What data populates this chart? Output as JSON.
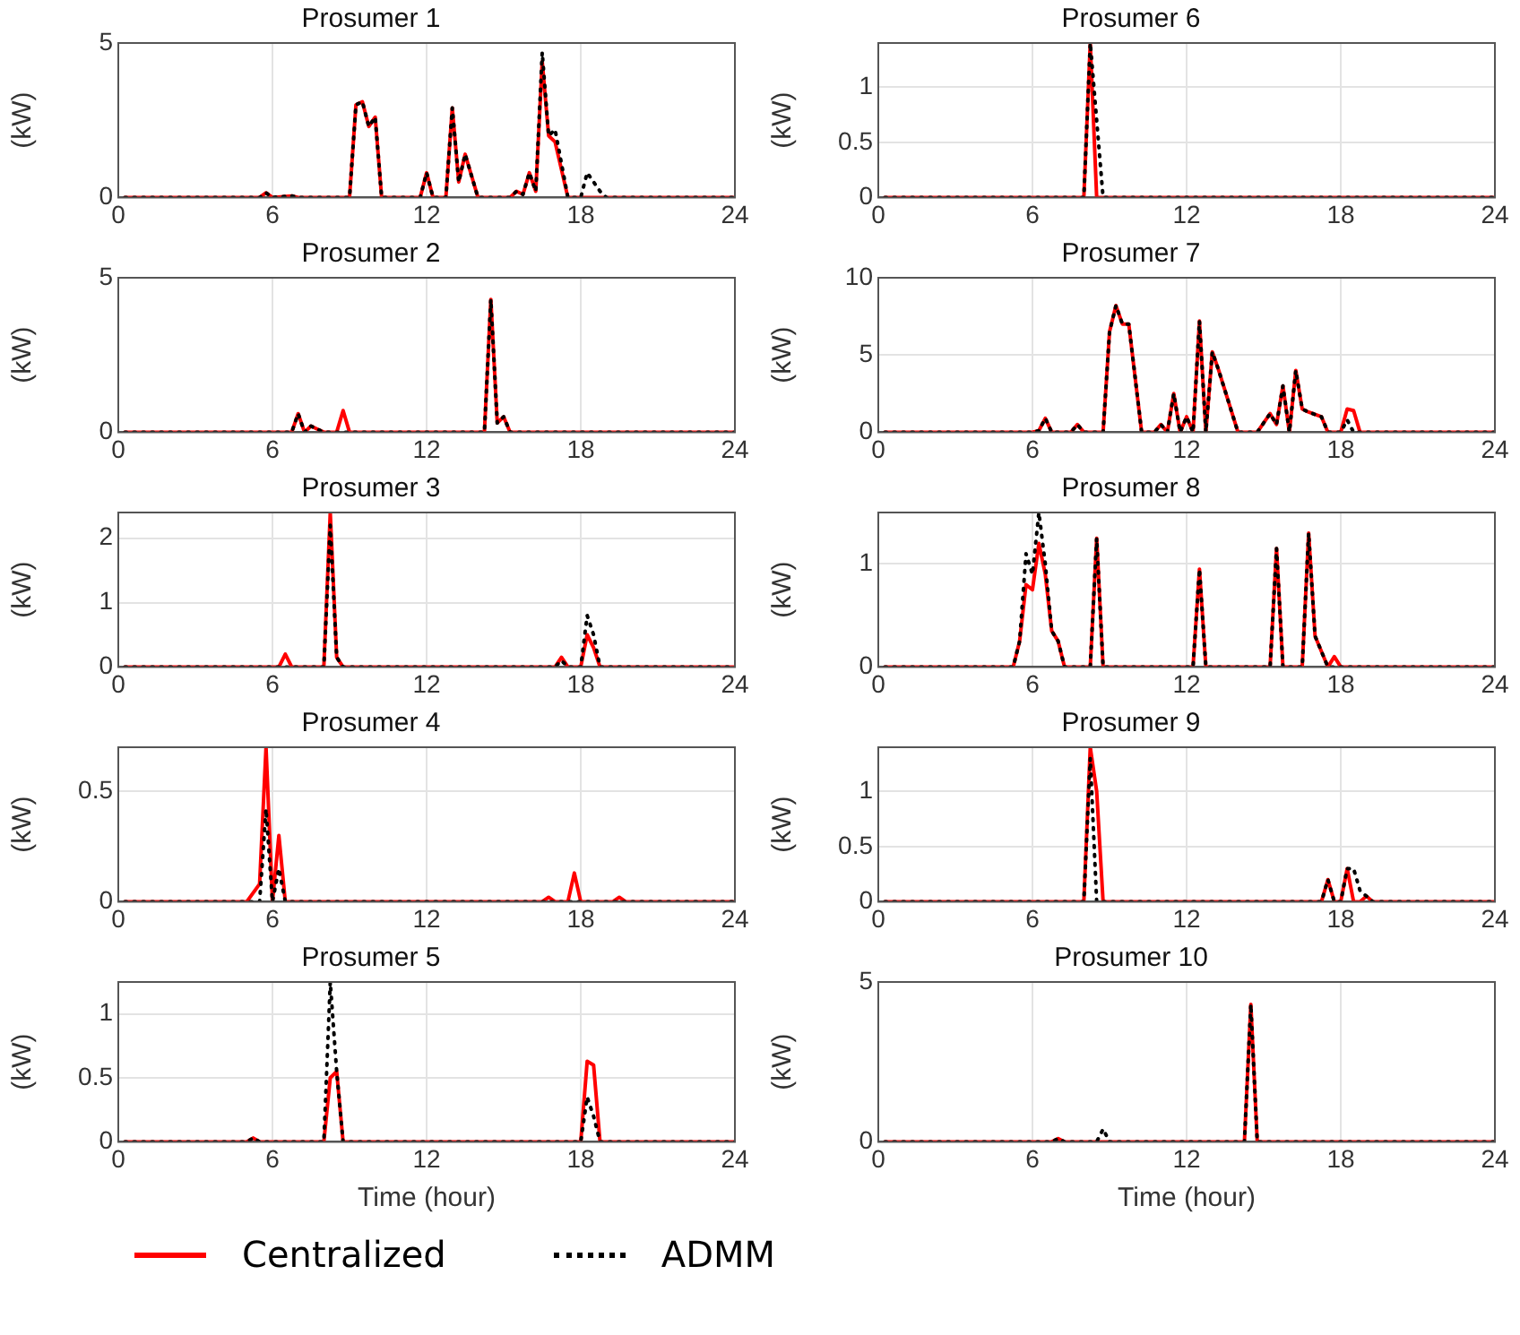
{
  "chart_data": [
    {
      "type": "line",
      "title": "Prosumer 1",
      "ylabel": "(kW)",
      "xlim": [
        0,
        24
      ],
      "xticks": [
        0,
        6,
        12,
        18,
        24
      ],
      "ylim": [
        0,
        5
      ],
      "yticks": [
        0,
        5
      ],
      "grid": true,
      "series": [
        {
          "color": "#ff0000",
          "line_style": "solid",
          "x": [
            0.25,
            5.5,
            5.75,
            6,
            6.75,
            7,
            7.25,
            9,
            9.25,
            9.5,
            9.75,
            10,
            10.25,
            11.75,
            12,
            12.25,
            12.75,
            13,
            13.25,
            13.5,
            13.75,
            14,
            15.25,
            15.5,
            15.75,
            16,
            16.25,
            16.5,
            16.75,
            17,
            17.5,
            24
          ],
          "values": [
            0,
            0,
            0.15,
            0,
            0.05,
            0,
            0,
            0,
            3,
            3.1,
            2.3,
            2.6,
            0,
            0,
            0.8,
            0,
            0,
            2.9,
            0.5,
            1.4,
            0.7,
            0,
            0,
            0.2,
            0.1,
            0.8,
            0.2,
            4.4,
            2,
            1.8,
            0,
            0
          ]
        },
        {
          "color": "#000000",
          "line_style": "dotted",
          "x": [
            0.25,
            5.5,
            5.75,
            6,
            6.75,
            7,
            7.25,
            9,
            9.25,
            9.5,
            9.75,
            10,
            10.25,
            11.75,
            12,
            12.25,
            12.75,
            13,
            13.25,
            13.5,
            13.75,
            14,
            15.25,
            15.5,
            15.75,
            16,
            16.25,
            16.5,
            16.75,
            17,
            17.5,
            18,
            18.25,
            18.5,
            18.75,
            19,
            24
          ],
          "values": [
            0,
            0,
            0.15,
            0,
            0.05,
            0,
            0,
            0,
            3,
            3.1,
            2.3,
            2.6,
            0,
            0,
            0.8,
            0,
            0,
            2.9,
            0.5,
            1.4,
            0.7,
            0,
            0,
            0.2,
            0.1,
            0.8,
            0.2,
            4.7,
            2,
            2.2,
            0,
            0,
            0.8,
            0.5,
            0.2,
            0,
            0
          ]
        }
      ]
    },
    {
      "type": "line",
      "title": "Prosumer 6",
      "ylabel": "(kW)",
      "xlim": [
        0,
        24
      ],
      "xticks": [
        0,
        6,
        12,
        18,
        24
      ],
      "ylim": [
        0,
        1.4
      ],
      "yticks": [
        0,
        0.5,
        1
      ],
      "grid": true,
      "series": [
        {
          "color": "#ff0000",
          "line_style": "solid",
          "x": [
            0.25,
            8,
            8.25,
            8.5,
            24
          ],
          "values": [
            0,
            0,
            1.4,
            0,
            0
          ]
        },
        {
          "color": "#000000",
          "line_style": "dotted",
          "x": [
            0.25,
            8,
            8.25,
            8.5,
            8.75,
            24
          ],
          "values": [
            0,
            0,
            1.4,
            0.7,
            0,
            0
          ]
        }
      ]
    },
    {
      "type": "line",
      "title": "Prosumer 2",
      "ylabel": "(kW)",
      "xlim": [
        0,
        24
      ],
      "xticks": [
        0,
        6,
        12,
        18,
        24
      ],
      "ylim": [
        0,
        5
      ],
      "yticks": [
        0,
        5
      ],
      "grid": true,
      "series": [
        {
          "color": "#ff0000",
          "line_style": "solid",
          "x": [
            0.25,
            6.75,
            7,
            7.25,
            7.5,
            7.75,
            8,
            8.5,
            8.75,
            9,
            14.25,
            14.5,
            14.75,
            15,
            15.25,
            24
          ],
          "values": [
            0,
            0,
            0.6,
            0,
            0.2,
            0.1,
            0,
            0,
            0.7,
            0,
            0,
            4.3,
            0.3,
            0.5,
            0,
            0
          ]
        },
        {
          "color": "#000000",
          "line_style": "dotted",
          "x": [
            0.25,
            6.75,
            7,
            7.25,
            7.5,
            7.75,
            8,
            14.25,
            14.5,
            14.75,
            15,
            15.25,
            24
          ],
          "values": [
            0,
            0,
            0.6,
            0,
            0.2,
            0.1,
            0,
            0,
            4.3,
            0.3,
            0.5,
            0,
            0
          ]
        }
      ]
    },
    {
      "type": "line",
      "title": "Prosumer 7",
      "ylabel": "(kW)",
      "xlim": [
        0,
        24
      ],
      "xticks": [
        0,
        6,
        12,
        18,
        24
      ],
      "ylim": [
        0,
        10
      ],
      "yticks": [
        0,
        5,
        10
      ],
      "grid": true,
      "series": [
        {
          "color": "#ff0000",
          "line_style": "solid",
          "x": [
            0.25,
            6,
            6.25,
            6.5,
            6.75,
            7.5,
            7.75,
            8,
            8.75,
            9,
            9.25,
            9.5,
            9.75,
            10.25,
            10.75,
            11,
            11.25,
            11.5,
            11.75,
            12,
            12.25,
            12.5,
            12.75,
            13,
            13.25,
            14,
            14.75,
            15.25,
            15.5,
            15.75,
            16,
            16.25,
            16.5,
            16.75,
            17.25,
            17.5,
            18,
            18.25,
            18.5,
            18.75,
            24
          ],
          "values": [
            0,
            0,
            0.1,
            0.9,
            0,
            0,
            0.5,
            0,
            0,
            6.5,
            8.2,
            7,
            7,
            0,
            0,
            0.5,
            0,
            2.5,
            0,
            1,
            0,
            7.2,
            0,
            5.2,
            4,
            0,
            0,
            1.2,
            0.5,
            3,
            0,
            4,
            1.5,
            1.3,
            1,
            0,
            0,
            1.5,
            1.4,
            0,
            0
          ]
        },
        {
          "color": "#000000",
          "line_style": "dotted",
          "x": [
            0.25,
            6,
            6.25,
            6.5,
            6.75,
            7.5,
            7.75,
            8,
            8.75,
            9,
            9.25,
            9.5,
            9.75,
            10.25,
            10.75,
            11,
            11.25,
            11.5,
            11.75,
            12,
            12.25,
            12.5,
            12.75,
            13,
            13.25,
            14,
            14.75,
            15.25,
            15.5,
            15.75,
            16,
            16.25,
            16.5,
            16.75,
            17.25,
            17.5,
            18,
            18.25,
            18.5,
            24
          ],
          "values": [
            0,
            0,
            0.1,
            0.9,
            0,
            0,
            0.5,
            0,
            0,
            6.5,
            8.2,
            7,
            7,
            0,
            0,
            0.5,
            0,
            2.5,
            0,
            1,
            0,
            7.2,
            0,
            5.2,
            4,
            0,
            0,
            1.2,
            0.5,
            3,
            0,
            4,
            1.5,
            1.3,
            1,
            0,
            0,
            0.8,
            0,
            0
          ]
        }
      ]
    },
    {
      "type": "line",
      "title": "Prosumer 3",
      "ylabel": "(kW)",
      "xlim": [
        0,
        24
      ],
      "xticks": [
        0,
        6,
        12,
        18,
        24
      ],
      "ylim": [
        0,
        2.4
      ],
      "yticks": [
        0,
        1,
        2
      ],
      "grid": true,
      "series": [
        {
          "color": "#ff0000",
          "line_style": "solid",
          "x": [
            0.25,
            6.25,
            6.5,
            6.75,
            8,
            8.25,
            8.5,
            8.75,
            17,
            17.25,
            17.5,
            18,
            18.25,
            18.5,
            18.75,
            24
          ],
          "values": [
            0,
            0,
            0.2,
            0,
            0,
            2.4,
            0.15,
            0,
            0,
            0.15,
            0,
            0,
            0.5,
            0.3,
            0,
            0
          ]
        },
        {
          "color": "#000000",
          "line_style": "dotted",
          "x": [
            0.25,
            8,
            8.25,
            8.5,
            8.75,
            17,
            17.25,
            17.5,
            18,
            18.25,
            18.5,
            18.75,
            24
          ],
          "values": [
            0,
            0,
            2.2,
            0.15,
            0,
            0,
            0.1,
            0,
            0,
            0.8,
            0.5,
            0,
            0
          ]
        }
      ]
    },
    {
      "type": "line",
      "title": "Prosumer 8",
      "ylabel": "(kW)",
      "xlim": [
        0,
        24
      ],
      "xticks": [
        0,
        6,
        12,
        18,
        24
      ],
      "ylim": [
        0,
        1.5
      ],
      "yticks": [
        0,
        1
      ],
      "grid": true,
      "series": [
        {
          "color": "#ff0000",
          "line_style": "solid",
          "x": [
            0.25,
            5.25,
            5.5,
            5.75,
            6,
            6.25,
            6.5,
            6.75,
            7,
            7.25,
            7.5,
            8.25,
            8.5,
            8.75,
            12.25,
            12.5,
            12.75,
            15.25,
            15.5,
            15.75,
            16.5,
            16.75,
            17,
            17.5,
            17.75,
            18,
            24
          ],
          "values": [
            0,
            0,
            0.25,
            0.8,
            0.75,
            1.2,
            0.9,
            0.35,
            0.25,
            0,
            0,
            0,
            1.25,
            0,
            0,
            0.95,
            0,
            0,
            1.15,
            0,
            0,
            1.3,
            0.3,
            0,
            0.1,
            0,
            0
          ]
        },
        {
          "color": "#000000",
          "line_style": "dotted",
          "x": [
            0.25,
            5.25,
            5.5,
            5.75,
            6,
            6.25,
            6.5,
            6.75,
            7,
            7.25,
            7.5,
            8.25,
            8.5,
            8.75,
            12.25,
            12.5,
            12.75,
            15.25,
            15.5,
            15.75,
            16.5,
            16.75,
            17,
            17.5,
            24
          ],
          "values": [
            0,
            0,
            0.25,
            1.1,
            0.9,
            1.5,
            1,
            0.35,
            0.25,
            0,
            0,
            0,
            1.25,
            0,
            0,
            0.95,
            0,
            0,
            1.15,
            0,
            0,
            1.3,
            0.3,
            0,
            0
          ]
        }
      ]
    },
    {
      "type": "line",
      "title": "Prosumer 4",
      "ylabel": "(kW)",
      "xlim": [
        0,
        24
      ],
      "xticks": [
        0,
        6,
        12,
        18,
        24
      ],
      "ylim": [
        0,
        0.7
      ],
      "yticks": [
        0,
        0.5
      ],
      "grid": true,
      "series": [
        {
          "color": "#ff0000",
          "line_style": "solid",
          "x": [
            0.25,
            5,
            5.5,
            5.75,
            6,
            6.25,
            6.5,
            16.5,
            16.75,
            17,
            17.5,
            17.75,
            18,
            19.25,
            19.5,
            19.75,
            24
          ],
          "values": [
            0,
            0,
            0.08,
            0.7,
            0,
            0.3,
            0,
            0,
            0.02,
            0,
            0,
            0.13,
            0,
            0,
            0.02,
            0,
            0
          ]
        },
        {
          "color": "#000000",
          "line_style": "dotted",
          "x": [
            0.25,
            5.5,
            5.75,
            6,
            6.25,
            6.5,
            24
          ],
          "values": [
            0,
            0,
            0.42,
            0,
            0.15,
            0,
            0
          ]
        }
      ]
    },
    {
      "type": "line",
      "title": "Prosumer 9",
      "ylabel": "(kW)",
      "xlim": [
        0,
        24
      ],
      "xticks": [
        0,
        6,
        12,
        18,
        24
      ],
      "ylim": [
        0,
        1.4
      ],
      "yticks": [
        0,
        0.5,
        1
      ],
      "grid": true,
      "series": [
        {
          "color": "#ff0000",
          "line_style": "solid",
          "x": [
            0.25,
            8,
            8.25,
            8.5,
            8.75,
            17.25,
            17.5,
            17.75,
            18,
            18.25,
            18.5,
            18.75,
            19,
            19.25,
            24
          ],
          "values": [
            0,
            0,
            1.4,
            1,
            0,
            0,
            0.2,
            0,
            0,
            0.3,
            0,
            0,
            0.05,
            0,
            0
          ]
        },
        {
          "color": "#000000",
          "line_style": "dotted",
          "x": [
            0.25,
            8,
            8.25,
            8.5,
            17.25,
            17.5,
            17.75,
            18,
            18.25,
            18.5,
            18.75,
            19,
            19.25,
            24
          ],
          "values": [
            0,
            0,
            1.3,
            0,
            0,
            0.2,
            0,
            0,
            0.3,
            0.3,
            0.1,
            0.05,
            0,
            0
          ]
        }
      ]
    },
    {
      "type": "line",
      "title": "Prosumer 5",
      "xlabel": "Time (hour)",
      "ylabel": "(kW)",
      "xlim": [
        0,
        24
      ],
      "xticks": [
        0,
        6,
        12,
        18,
        24
      ],
      "ylim": [
        0,
        1.25
      ],
      "yticks": [
        0,
        0.5,
        1
      ],
      "grid": true,
      "series": [
        {
          "color": "#ff0000",
          "line_style": "solid",
          "x": [
            0.25,
            5,
            5.25,
            5.5,
            8,
            8.25,
            8.5,
            8.75,
            18,
            18.25,
            18.5,
            18.75,
            24
          ],
          "values": [
            0,
            0,
            0.03,
            0,
            0,
            0.5,
            0.55,
            0,
            0,
            0.63,
            0.6,
            0,
            0
          ]
        },
        {
          "color": "#000000",
          "line_style": "dotted",
          "x": [
            0.25,
            5,
            5.25,
            5.5,
            8,
            8.25,
            8.5,
            8.75,
            18,
            18.25,
            18.5,
            18.75,
            24
          ],
          "values": [
            0,
            0,
            0.03,
            0,
            0,
            1.25,
            0.55,
            0,
            0,
            0.35,
            0.2,
            0,
            0
          ]
        }
      ]
    },
    {
      "type": "line",
      "title": "Prosumer 10",
      "xlabel": "Time (hour)",
      "ylabel": "(kW)",
      "xlim": [
        0,
        24
      ],
      "xticks": [
        0,
        6,
        12,
        18,
        24
      ],
      "ylim": [
        0,
        5
      ],
      "yticks": [
        0,
        5
      ],
      "grid": true,
      "legend": "bottom",
      "series": [
        {
          "name": "Centralized",
          "color": "#ff0000",
          "line_style": "solid",
          "x": [
            0.25,
            6.75,
            7,
            7.25,
            14.25,
            14.5,
            14.75,
            24
          ],
          "values": [
            0,
            0,
            0.1,
            0,
            0,
            4.3,
            0,
            0
          ]
        },
        {
          "name": "ADMM",
          "color": "#000000",
          "line_style": "dotted",
          "x": [
            0.25,
            6.75,
            7,
            7.25,
            8.5,
            8.75,
            9,
            14.25,
            14.5,
            14.75,
            24
          ],
          "values": [
            0,
            0,
            0.1,
            0,
            0,
            0.4,
            0,
            0,
            4.3,
            0,
            0
          ]
        }
      ]
    }
  ]
}
